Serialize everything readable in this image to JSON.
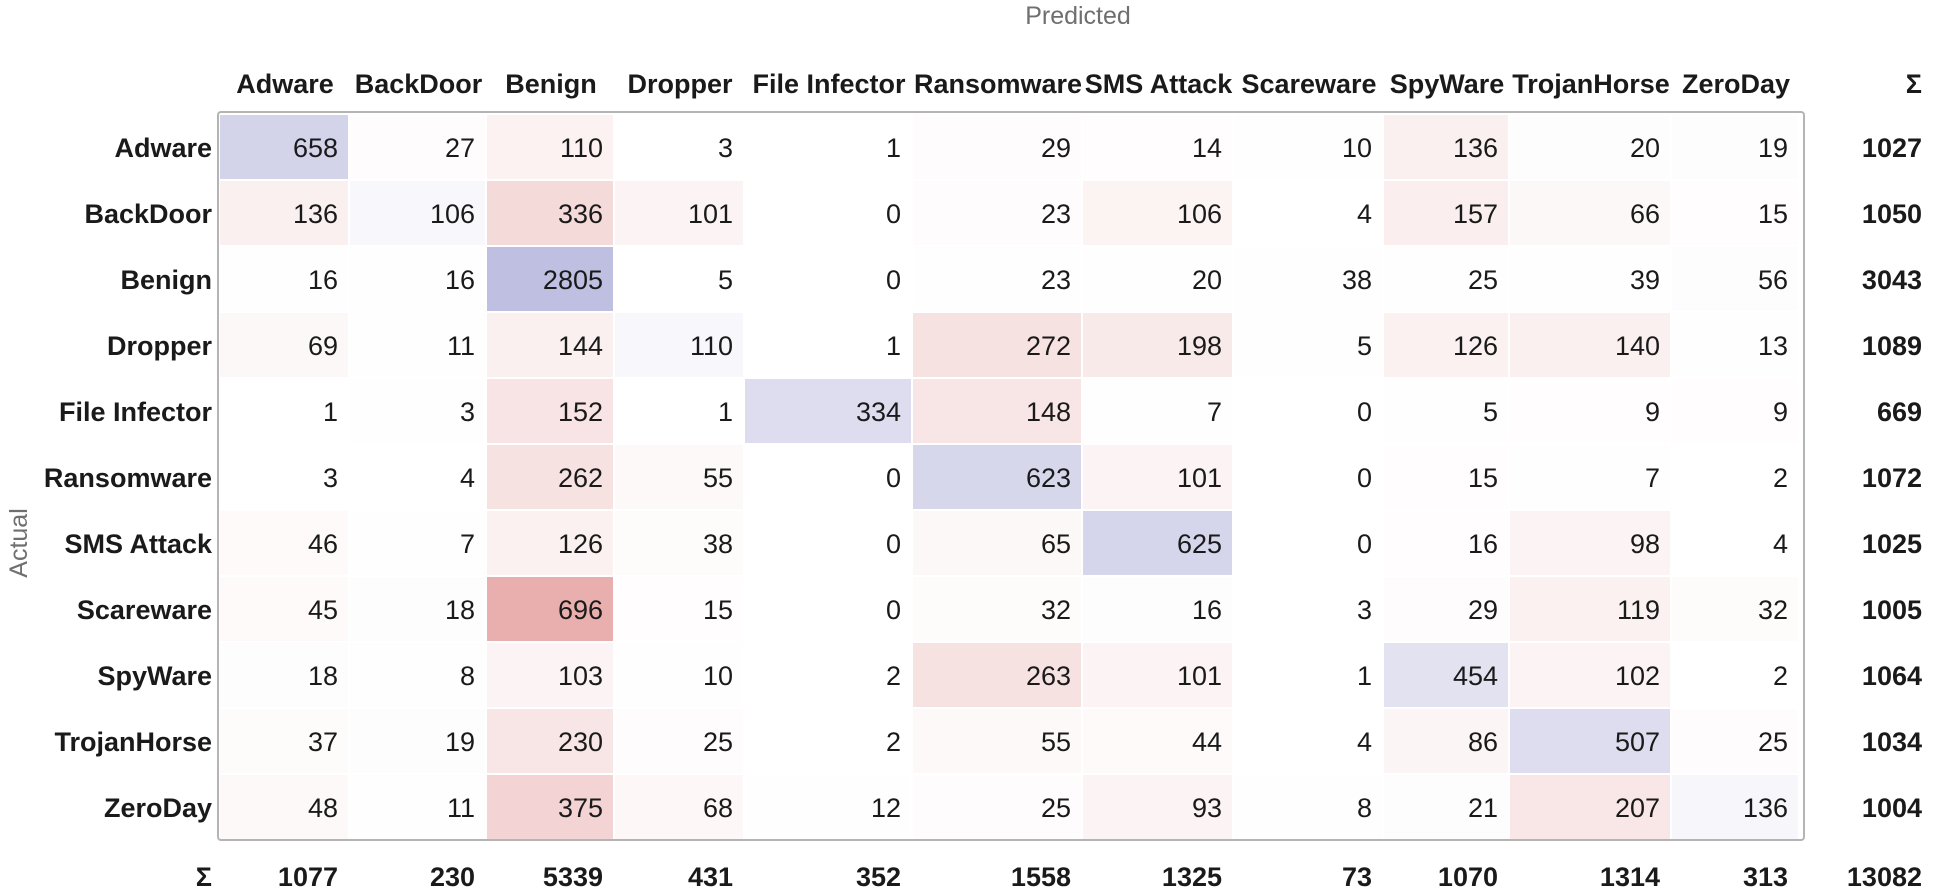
{
  "chart_data": {
    "type": "heatmap",
    "xlabel": "Predicted",
    "ylabel": "Actual",
    "sum_symbol": "Σ",
    "categories": [
      "Adware",
      "BackDoor",
      "Benign",
      "Dropper",
      "File Infector",
      "Ransomware",
      "SMS Attack",
      "Scareware",
      "SpyWare",
      "TrojanHorse",
      "ZeroDay"
    ],
    "matrix": [
      [
        658,
        27,
        110,
        3,
        1,
        29,
        14,
        10,
        136,
        20,
        19
      ],
      [
        136,
        106,
        336,
        101,
        0,
        23,
        106,
        4,
        157,
        66,
        15
      ],
      [
        16,
        16,
        2805,
        5,
        0,
        23,
        20,
        38,
        25,
        39,
        56
      ],
      [
        69,
        11,
        144,
        110,
        1,
        272,
        198,
        5,
        126,
        140,
        13
      ],
      [
        1,
        3,
        152,
        1,
        334,
        148,
        7,
        0,
        5,
        9,
        9
      ],
      [
        3,
        4,
        262,
        55,
        0,
        623,
        101,
        0,
        15,
        7,
        2
      ],
      [
        46,
        7,
        126,
        38,
        0,
        65,
        625,
        0,
        16,
        98,
        4
      ],
      [
        45,
        18,
        696,
        15,
        0,
        32,
        16,
        3,
        29,
        119,
        32
      ],
      [
        18,
        8,
        103,
        10,
        2,
        263,
        101,
        1,
        454,
        102,
        2
      ],
      [
        37,
        19,
        230,
        25,
        2,
        55,
        44,
        4,
        86,
        507,
        25
      ],
      [
        48,
        11,
        375,
        68,
        12,
        25,
        93,
        8,
        21,
        207,
        136
      ]
    ],
    "row_sums": [
      1027,
      1050,
      3043,
      1089,
      669,
      1072,
      1025,
      1005,
      1064,
      1034,
      1004
    ],
    "col_sums": [
      1077,
      230,
      5339,
      431,
      352,
      1558,
      1325,
      73,
      1070,
      1314,
      313
    ],
    "total": 13082,
    "colors": {
      "correct": "#8c8cc8",
      "error": "#dc7d7d",
      "border": "#b4b4b4"
    }
  }
}
